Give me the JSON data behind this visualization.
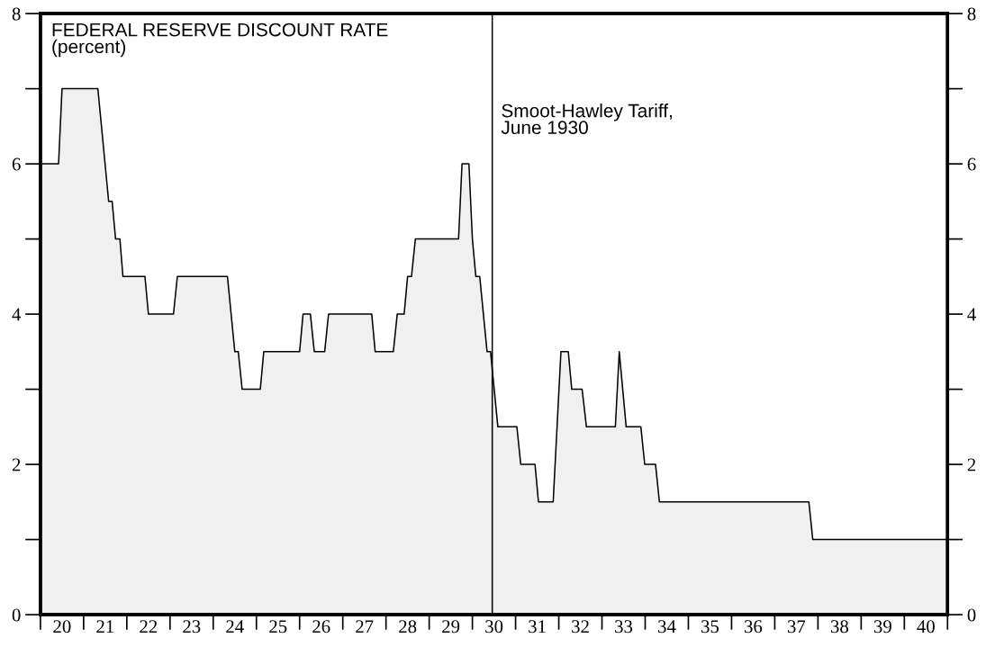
{
  "chart_data": {
    "type": "area",
    "title": "FEDERAL RESERVE DISCOUNT RATE\n(percent)",
    "series": [
      {
        "color": "#f0f0f0",
        "line_style": "solid",
        "x": [
          19.5,
          19.92,
          20.0,
          20.83,
          21.08,
          21.16,
          21.24,
          21.34,
          21.41,
          21.92,
          22.0,
          22.58,
          22.67,
          23.83,
          24.0,
          24.08,
          24.17,
          24.59,
          24.67,
          25.5,
          25.58,
          25.75,
          25.84,
          26.08,
          26.17,
          27.17,
          27.25,
          27.67,
          27.76,
          27.92,
          28.0,
          28.09,
          28.18,
          29.18,
          29.26,
          29.42,
          29.5,
          29.58,
          29.67,
          29.84,
          29.92,
          30.09,
          30.53,
          30.62,
          30.95,
          31.03,
          31.37,
          31.55,
          31.72,
          31.8,
          32.04,
          32.14,
          32.81,
          32.9,
          33.06,
          33.4,
          33.49,
          33.74,
          33.83,
          37.29,
          37.38,
          40.5
        ],
        "values": [
          6,
          6,
          7,
          7,
          5.5,
          5.5,
          5,
          5,
          4.5,
          4.5,
          4,
          4,
          4.5,
          4.5,
          3.5,
          3.5,
          3,
          3,
          3.5,
          3.5,
          4,
          4,
          3.5,
          3.5,
          4,
          4,
          3.5,
          3.5,
          4,
          4,
          4.5,
          4.5,
          5,
          5,
          6,
          6,
          5,
          4.5,
          4.5,
          3.5,
          3.5,
          2.5,
          2.5,
          2,
          2,
          1.5,
          1.5,
          3.5,
          3.5,
          3,
          3,
          2.5,
          2.5,
          3.5,
          2.5,
          2.5,
          2,
          2,
          1.5,
          1.5,
          1,
          1
        ]
      }
    ],
    "xlim": [
      19.5,
      40.5
    ],
    "xticks": [
      20,
      21,
      22,
      23,
      24,
      25,
      26,
      27,
      28,
      29,
      30,
      31,
      32,
      33,
      34,
      35,
      36,
      37,
      38,
      39,
      40
    ],
    "ylim": [
      0,
      8
    ],
    "yticks": [
      0,
      2,
      4,
      6,
      8
    ],
    "y2lim": [
      0,
      8
    ],
    "y2ticks": [
      0,
      2,
      4,
      6,
      8
    ],
    "ref_lines": [
      {
        "axis": "x",
        "value": 29.96,
        "label": "Smoot-Hawley Tariff,\nJune 1930",
        "color": "#000000",
        "line_style": "solid"
      }
    ],
    "grid": false,
    "marker": "none"
  }
}
